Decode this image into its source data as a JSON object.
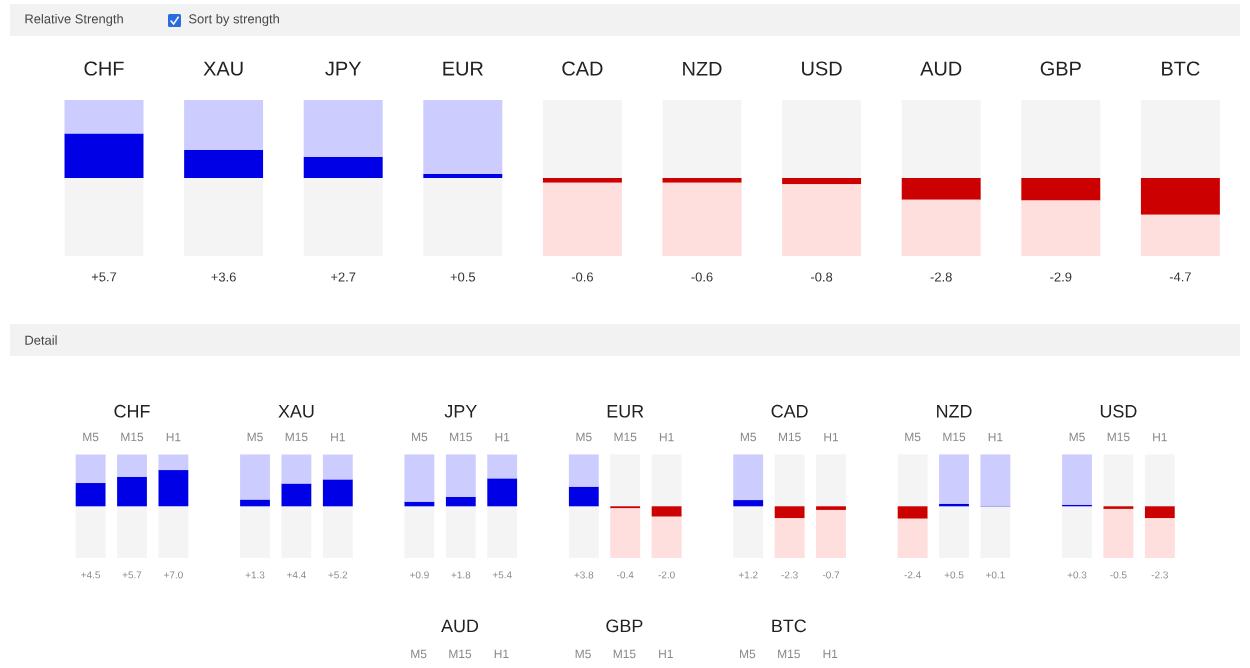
{
  "chart_data": [
    {
      "type": "bar",
      "title": "Relative Strength",
      "annotations": [
        "Sort by strength"
      ],
      "categories": [
        "CHF",
        "XAU",
        "JPY",
        "EUR",
        "CAD",
        "NZD",
        "USD",
        "AUD",
        "GBP",
        "BTC"
      ],
      "ylim": [
        -10,
        10
      ],
      "tick_labels": "x",
      "stacked": true,
      "series": [
        {
          "values": [
            5.7,
            3.6,
            2.7,
            0.5,
            -0.6,
            -0.6,
            -0.8,
            -2.8,
            -2.9,
            -4.7
          ],
          "value_labels": [
            "+5.7",
            "+3.6",
            "+2.7",
            "+0.5",
            "-0.6",
            "-0.6",
            "-0.8",
            "-2.8",
            "-2.9",
            "-4.7"
          ],
          "colors": [
            "#0000e6",
            "#0000e6",
            "#0000e6",
            "#0000e6",
            "#cc0000",
            "#cc0000",
            "#cc0000",
            "#cc0000",
            "#cc0000",
            "#cc0000"
          ]
        },
        {
          "values": [
            4.3,
            6.4,
            7.3,
            9.5,
            -9.4,
            -9.4,
            -9.2,
            -7.2,
            -7.1,
            -5.3
          ],
          "colors": [
            "#ccccff",
            "#ccccff",
            "#ccccff",
            "#ccccff",
            "#ffdede",
            "#ffdede",
            "#ffdede",
            "#ffdede",
            "#ffdede",
            "#ffdede"
          ]
        }
      ]
    },
    {
      "type": "bar",
      "title": "CHF",
      "annotations": [
        "Detail"
      ],
      "categories": [
        "M5",
        "M15",
        "H1"
      ],
      "ylim": [
        -10,
        10
      ],
      "tick_labels": "x",
      "stacked": true,
      "series": [
        {
          "values": [
            4.5,
            5.7,
            7.0
          ],
          "value_labels": [
            "+4.5",
            "+5.7",
            "+7.0"
          ],
          "colors": [
            "#0000e6",
            "#0000e6",
            "#0000e6"
          ]
        },
        {
          "values": [
            5.5,
            4.3,
            3.0
          ],
          "colors": [
            "#ccccff",
            "#ccccff",
            "#ccccff"
          ]
        }
      ]
    },
    {
      "type": "bar",
      "title": "XAU",
      "categories": [
        "M5",
        "M15",
        "H1"
      ],
      "ylim": [
        -10,
        10
      ],
      "tick_labels": "x",
      "stacked": true,
      "series": [
        {
          "values": [
            1.3,
            4.4,
            5.2
          ],
          "value_labels": [
            "+1.3",
            "+4.4",
            "+5.2"
          ],
          "colors": [
            "#0000e6",
            "#0000e6",
            "#0000e6"
          ]
        },
        {
          "values": [
            8.7,
            5.6,
            4.8
          ],
          "colors": [
            "#ccccff",
            "#ccccff",
            "#ccccff"
          ]
        }
      ]
    },
    {
      "type": "bar",
      "title": "JPY",
      "categories": [
        "M5",
        "M15",
        "H1"
      ],
      "ylim": [
        -10,
        10
      ],
      "tick_labels": "x",
      "stacked": true,
      "series": [
        {
          "values": [
            0.9,
            1.8,
            5.4
          ],
          "value_labels": [
            "+0.9",
            "+1.8",
            "+5.4"
          ],
          "colors": [
            "#0000e6",
            "#0000e6",
            "#0000e6"
          ]
        },
        {
          "values": [
            9.1,
            8.2,
            4.6
          ],
          "colors": [
            "#ccccff",
            "#ccccff",
            "#ccccff"
          ]
        }
      ]
    },
    {
      "type": "bar",
      "title": "EUR",
      "categories": [
        "M5",
        "M15",
        "H1"
      ],
      "ylim": [
        -10,
        10
      ],
      "tick_labels": "x",
      "stacked": true,
      "series": [
        {
          "values": [
            3.8,
            -0.4,
            -2.0
          ],
          "value_labels": [
            "+3.8",
            "-0.4",
            "-2.0"
          ],
          "colors": [
            "#0000e6",
            "#cc0000",
            "#cc0000"
          ]
        },
        {
          "values": [
            6.2,
            -9.6,
            -8.0
          ],
          "colors": [
            "#ccccff",
            "#ffdede",
            "#ffdede"
          ]
        }
      ]
    },
    {
      "type": "bar",
      "title": "CAD",
      "categories": [
        "M5",
        "M15",
        "H1"
      ],
      "ylim": [
        -10,
        10
      ],
      "tick_labels": "x",
      "stacked": true,
      "series": [
        {
          "values": [
            1.2,
            -2.3,
            -0.7
          ],
          "value_labels": [
            "+1.2",
            "-2.3",
            "-0.7"
          ],
          "colors": [
            "#0000e6",
            "#cc0000",
            "#cc0000"
          ]
        },
        {
          "values": [
            8.8,
            -7.7,
            -9.3
          ],
          "colors": [
            "#ccccff",
            "#ffdede",
            "#ffdede"
          ]
        }
      ]
    },
    {
      "type": "bar",
      "title": "NZD",
      "categories": [
        "M5",
        "M15",
        "H1"
      ],
      "ylim": [
        -10,
        10
      ],
      "tick_labels": "x",
      "stacked": true,
      "series": [
        {
          "values": [
            -2.4,
            0.5,
            0.1
          ],
          "value_labels": [
            "-2.4",
            "+0.5",
            "+0.1"
          ],
          "colors": [
            "#cc0000",
            "#0000e6",
            "#0000e6"
          ]
        },
        {
          "values": [
            -7.6,
            9.5,
            9.9
          ],
          "colors": [
            "#ffdede",
            "#ccccff",
            "#ccccff"
          ]
        }
      ]
    },
    {
      "type": "bar",
      "title": "USD",
      "categories": [
        "M5",
        "M15",
        "H1"
      ],
      "ylim": [
        -10,
        10
      ],
      "tick_labels": "x",
      "stacked": true,
      "series": [
        {
          "values": [
            0.3,
            -0.5,
            -2.3
          ],
          "value_labels": [
            "+0.3",
            "-0.5",
            "-2.3"
          ],
          "colors": [
            "#0000e6",
            "#cc0000",
            "#cc0000"
          ]
        },
        {
          "values": [
            9.7,
            -9.5,
            -7.7
          ],
          "colors": [
            "#ccccff",
            "#ffdede",
            "#ffdede"
          ]
        }
      ]
    },
    {
      "type": "other",
      "title": "AUD",
      "annotations": [
        "M5",
        "M15",
        "H1"
      ]
    },
    {
      "type": "other",
      "title": "GBP",
      "annotations": [
        "M5",
        "M15",
        "H1"
      ]
    },
    {
      "type": "other",
      "title": "BTC",
      "annotations": [
        "M5",
        "M15",
        "H1"
      ]
    }
  ]
}
